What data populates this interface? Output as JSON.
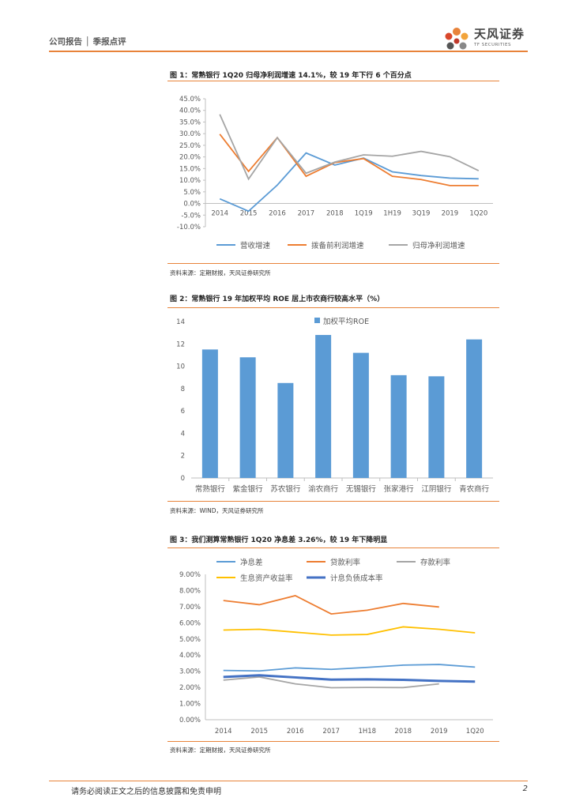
{
  "header": {
    "breadcrumb": "公司报告 │ 季报点评",
    "logo_cn": "天风证券",
    "logo_en": "TF SECURITIES"
  },
  "figures": [
    {
      "title": "图 1：常熟银行 1Q20 归母净利润增速 14.1%，较 19 年下行 6 个百分点",
      "source": "资料来源：定期财报，天风证券研究所"
    },
    {
      "title": "图 2：常熟银行 19 年加权平均 ROE 居上市农商行较高水平（%）",
      "source": "资料来源：WIND，天风证券研究所"
    },
    {
      "title": "图 3：我们测算常熟银行 1Q20 净息差 3.26%，较 19 年下降明显",
      "source": "资料来源：定期财报，天风证券研究所"
    }
  ],
  "chart_data": [
    {
      "type": "line",
      "x": [
        "2014",
        "2015",
        "2016",
        "2017",
        "2018",
        "1Q19",
        "1H19",
        "3Q19",
        "2019",
        "1Q20"
      ],
      "ylim": [
        -10,
        45
      ],
      "yticks": [
        "45.0%",
        "40.0%",
        "35.0%",
        "30.0%",
        "25.0%",
        "20.0%",
        "15.0%",
        "10.0%",
        "5.0%",
        "0.0%",
        "-5.0%",
        "-10.0%"
      ],
      "legend_position": "bottom",
      "series": [
        {
          "name": "营收增速",
          "color": "#5b9bd5",
          "values": [
            2.0,
            -3.3,
            7.9,
            21.7,
            16.5,
            19.5,
            13.6,
            12.0,
            10.9,
            10.6
          ]
        },
        {
          "name": "拨备前利润增速",
          "color": "#ed7d31",
          "values": [
            29.8,
            13.8,
            28.3,
            11.7,
            17.6,
            19.3,
            11.7,
            10.3,
            7.7,
            7.7
          ]
        },
        {
          "name": "归母净利润增速",
          "color": "#a5a5a5",
          "values": [
            38.3,
            10.5,
            28.3,
            13.0,
            17.8,
            20.9,
            20.3,
            22.4,
            20.1,
            14.1
          ]
        }
      ]
    },
    {
      "type": "bar",
      "categories": [
        "常熟银行",
        "紫金银行",
        "苏农银行",
        "渝农商行",
        "无锡银行",
        "张家港行",
        "江阴银行",
        "青农商行"
      ],
      "ylim": [
        0,
        14
      ],
      "yticks": [
        "14",
        "12",
        "10",
        "8",
        "6",
        "4",
        "2",
        "0"
      ],
      "legend_position": "top",
      "series": [
        {
          "name": "加权平均ROE",
          "color": "#5b9bd5",
          "values": [
            11.5,
            10.8,
            8.5,
            12.8,
            11.2,
            9.2,
            9.1,
            12.4
          ]
        }
      ]
    },
    {
      "type": "line",
      "x": [
        "2014",
        "2015",
        "2016",
        "2017",
        "1H18",
        "2018",
        "2019",
        "1Q20"
      ],
      "ylim": [
        0,
        9
      ],
      "yticks": [
        "9.00%",
        "8.00%",
        "7.00%",
        "6.00%",
        "5.00%",
        "4.00%",
        "3.00%",
        "2.00%",
        "1.00%",
        "0.00%"
      ],
      "legend_position": "top",
      "series": [
        {
          "name": "净息差",
          "color": "#5b9bd5",
          "values": [
            3.05,
            3.02,
            3.21,
            3.12,
            3.24,
            3.38,
            3.42,
            3.26
          ]
        },
        {
          "name": "贷款利率",
          "color": "#ed7d31",
          "values": [
            7.38,
            7.12,
            7.68,
            6.55,
            6.78,
            7.2,
            6.98,
            null
          ]
        },
        {
          "name": "存款利率",
          "color": "#a5a5a5",
          "values": [
            2.45,
            2.65,
            2.22,
            1.98,
            2.0,
            1.99,
            2.22,
            null
          ]
        },
        {
          "name": "生息资产收益率",
          "color": "#ffc000",
          "values": [
            5.55,
            5.6,
            5.42,
            5.24,
            5.28,
            5.75,
            5.6,
            5.38
          ]
        },
        {
          "name": "计息负债成本率",
          "color": "#4472c4",
          "values": [
            2.65,
            2.75,
            2.62,
            2.48,
            2.5,
            2.47,
            2.4,
            2.36
          ]
        }
      ]
    }
  ],
  "footer": {
    "disclaimer": "请务必阅读正文之后的信息披露和免责申明",
    "page": "2"
  }
}
